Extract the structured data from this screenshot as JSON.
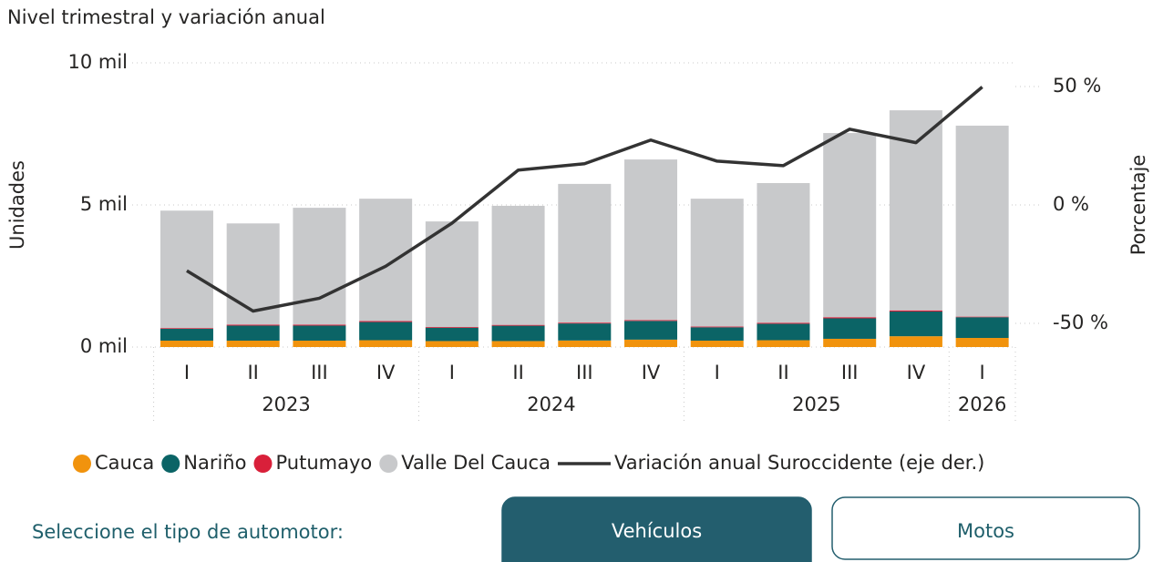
{
  "chart_data": {
    "type": "bar",
    "stacked": true,
    "title": "Nivel trimestral y variación anual",
    "y_label": "Unidades",
    "y2_label": "Porcentaje",
    "categories": [
      "I",
      "II",
      "III",
      "IV",
      "I",
      "II",
      "III",
      "IV",
      "I",
      "II",
      "III",
      "IV",
      "I"
    ],
    "x_groups": [
      {
        "label": "2023",
        "size": 4
      },
      {
        "label": "2024",
        "size": 4
      },
      {
        "label": "2025",
        "size": 4
      },
      {
        "label": "2026",
        "size": 1
      }
    ],
    "ylim": [
      0,
      10000
    ],
    "yticks": [
      {
        "value": 0,
        "label": "0 mil"
      },
      {
        "value": 5000,
        "label": "5 mil"
      },
      {
        "value": 10000,
        "label": "10 mil"
      }
    ],
    "y2lim": [
      -60,
      60
    ],
    "y2ticks": [
      {
        "value": -50,
        "label": "-50 %"
      },
      {
        "value": 0,
        "label": "0 %"
      },
      {
        "value": 50,
        "label": "50 %"
      }
    ],
    "grid": true,
    "legend": "bottom",
    "series": [
      {
        "name": "Cauca",
        "color": "#f1930d",
        "type": "bar",
        "values": [
          225,
          225,
          225,
          240,
          210,
          210,
          230,
          260,
          225,
          240,
          290,
          380,
          320
        ]
      },
      {
        "name": "Nariño",
        "color": "#0b6466",
        "type": "bar",
        "values": [
          420,
          530,
          530,
          640,
          470,
          540,
          600,
          660,
          470,
          580,
          720,
          870,
          730
        ]
      },
      {
        "name": "Putumayo",
        "color": "#d9203a",
        "type": "bar",
        "values": [
          25,
          35,
          35,
          35,
          25,
          30,
          30,
          30,
          25,
          35,
          40,
          40,
          20
        ]
      },
      {
        "name": "Valle Del Cauca",
        "color": "#c8c9cb",
        "type": "bar",
        "values": [
          4130,
          3560,
          4110,
          4305,
          3715,
          4190,
          4880,
          5650,
          4500,
          4915,
          6480,
          7040,
          6720
        ]
      },
      {
        "name": "Variación anual Suroccidente (eje der.)",
        "color": "#333333",
        "type": "line",
        "axis": "y2",
        "values": [
          -27.8,
          -44.8,
          -39.4,
          -25.9,
          -7.7,
          14.7,
          17.4,
          27.4,
          18.5,
          16.6,
          32.0,
          26.3,
          49.8
        ]
      }
    ]
  },
  "controls": {
    "label": "Seleccione el tipo de automotor:",
    "options": [
      "Vehículos",
      "Motos"
    ],
    "selected": "Vehículos"
  }
}
